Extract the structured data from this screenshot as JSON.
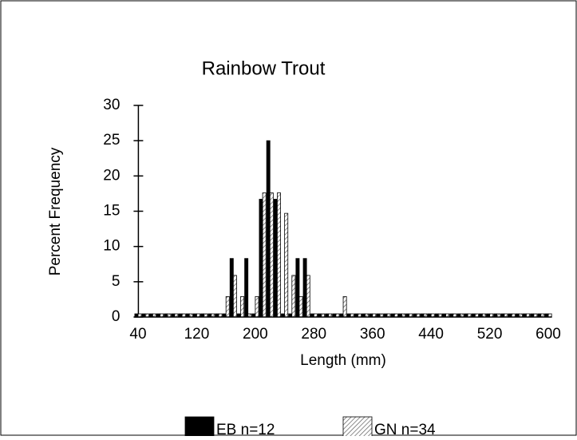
{
  "chart_data": {
    "type": "bar",
    "title": "Rainbow Trout",
    "x_label": "Length (mm)",
    "y_label": "Percent Frequency",
    "categories": [
      "40",
      null,
      null,
      null,
      null,
      null,
      null,
      null,
      "120",
      null,
      null,
      null,
      null,
      null,
      null,
      null,
      "200",
      null,
      null,
      null,
      null,
      null,
      null,
      null,
      "280",
      null,
      null,
      null,
      null,
      null,
      null,
      null,
      "360",
      null,
      null,
      null,
      null,
      null,
      null,
      null,
      "440",
      null,
      null,
      null,
      null,
      null,
      null,
      null,
      "520",
      null,
      null,
      null,
      null,
      null,
      null,
      null,
      "600"
    ],
    "series": [
      {
        "name": "EB n=12",
        "color": "#000000",
        "values": [
          0,
          0,
          0,
          0,
          0,
          0,
          0,
          0,
          0,
          0,
          0,
          0,
          0,
          8.3,
          0,
          8.3,
          0,
          16.7,
          25,
          16.7,
          0,
          0,
          8.3,
          8.3,
          0,
          0,
          0,
          0,
          0,
          0,
          0,
          0,
          0,
          0,
          0,
          0,
          0,
          0,
          0,
          0,
          0,
          0,
          0,
          0,
          0,
          0,
          0,
          0,
          0,
          0,
          0,
          0,
          0,
          0,
          0,
          0,
          0
        ]
      },
      {
        "name": "GN n=34",
        "color": "#888888",
        "pattern": "hatch",
        "values": [
          0,
          0,
          0,
          0,
          0,
          0,
          0,
          0,
          0,
          0,
          0,
          0,
          2.9,
          5.9,
          2.9,
          0,
          2.9,
          17.6,
          17.6,
          17.6,
          14.7,
          5.9,
          2.9,
          5.9,
          0,
          0,
          0,
          0,
          2.9,
          0,
          0,
          0,
          0,
          0,
          0,
          0,
          0,
          0,
          0,
          0,
          0,
          0,
          0,
          0,
          0,
          0,
          0,
          0,
          0,
          0,
          0,
          0,
          0,
          0,
          0,
          0,
          0
        ]
      }
    ],
    "ylim": [
      0,
      30
    ],
    "yticks": [
      0,
      5,
      10,
      15,
      20,
      25,
      30
    ],
    "legend": "bottom"
  }
}
